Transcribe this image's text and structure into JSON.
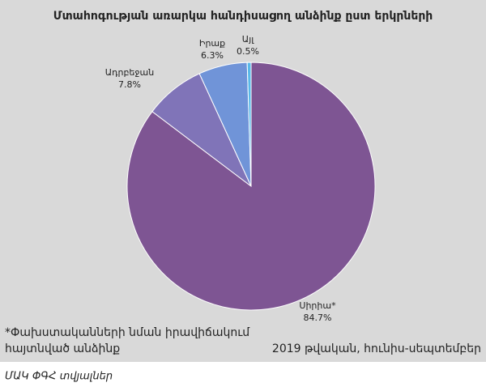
{
  "chart_data": {
    "type": "pie",
    "title": "Մտահոգության առարկա հանդիսացող անձինք ըստ երկրների",
    "categories": [
      "Սիրիա*",
      "Ադրբեջան",
      "Իրաք",
      "Այլ"
    ],
    "values": [
      84.7,
      7.8,
      6.3,
      0.5
    ],
    "value_labels": [
      "84.7%",
      "7.8%",
      "6.3%",
      "0.5%"
    ],
    "colors": [
      "#7e5593",
      "#8074b8",
      "#7094d8",
      "#59b9e9"
    ],
    "footnote": [
      "*Փախստականների նման իրավիճակում",
      "հայտնված անձինք"
    ],
    "period": "2019 թվական, հունիս-սեպտեմբեր",
    "source": "ՄԱԿ ՓԳՀ տվյալներ"
  }
}
